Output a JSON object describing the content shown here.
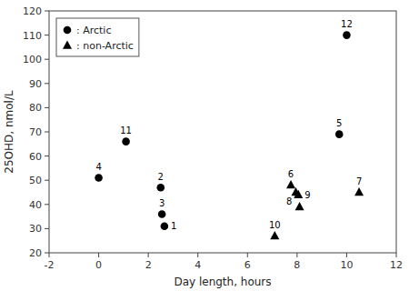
{
  "chart_data": {
    "type": "scatter",
    "xlabel": "Day length, hours",
    "ylabel": "25OHD, nmol/L",
    "xlim": [
      -2,
      12
    ],
    "ylim": [
      20,
      120
    ],
    "xticks": [
      -2,
      0,
      2,
      4,
      6,
      8,
      10,
      12
    ],
    "yticks": [
      20,
      30,
      40,
      50,
      60,
      70,
      80,
      90,
      100,
      110,
      120
    ],
    "grid": false,
    "legend": "upper left",
    "series": [
      {
        "name": ": Arctic",
        "marker": "circle",
        "color": "black",
        "x": [
          0.0,
          2.5,
          2.65,
          2.55,
          1.1,
          9.7,
          10.0
        ],
        "values": [
          51,
          47,
          31,
          36,
          66,
          69,
          110
        ],
        "labels": [
          "4",
          "2",
          "1",
          "3",
          "11",
          "5",
          "12"
        ]
      },
      {
        "name": ": non-Arctic",
        "marker": "triangle",
        "color": "black",
        "x": [
          7.75,
          8.05,
          7.95,
          8.1,
          7.1,
          10.5
        ],
        "values": [
          48,
          44,
          45,
          39,
          27,
          45
        ],
        "labels": [
          "6",
          "9",
          "8",
          null,
          "10",
          "7"
        ]
      }
    ]
  }
}
